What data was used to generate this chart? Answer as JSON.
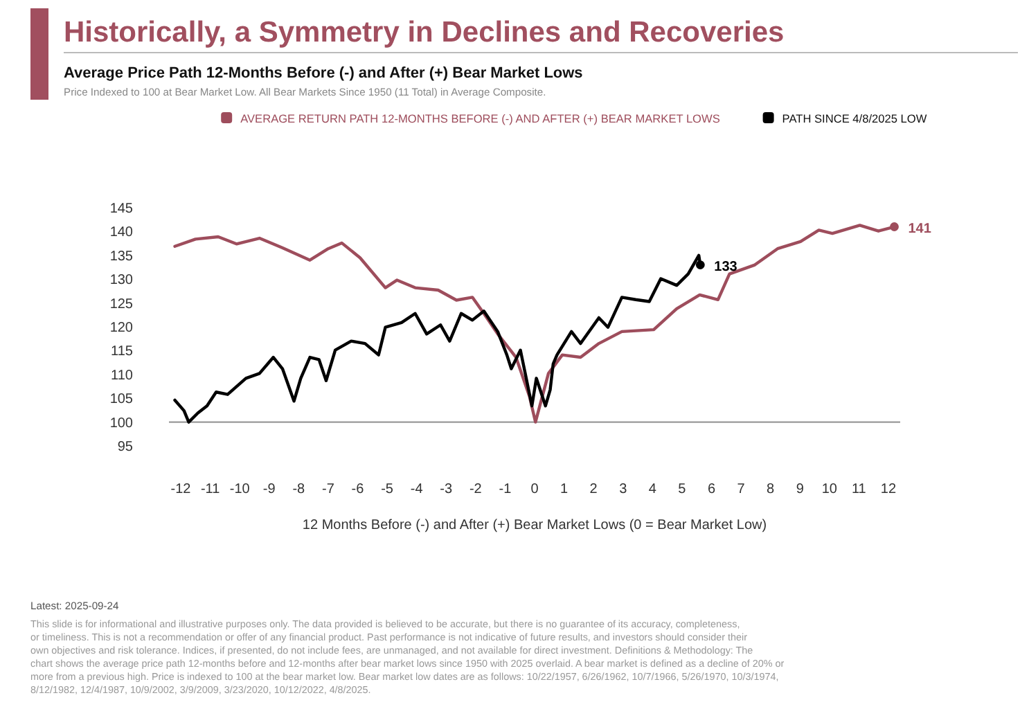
{
  "chart_data": {
    "type": "line",
    "title": "Historically, a Symmetry in Declines and Recoveries",
    "subtitle": "Average Price Path 12-Months Before (-) and After (+) Bear Market Lows",
    "xlabel": "12 Months Before (-) and After (+) Bear Market Lows (0 = Bear Market Low)",
    "annotations": [
      "Price Indexed to 100 at Bear Market Low. All Bear Markets Since 1950 (11 Total) in Average Composite.",
      "Latest: 2025-09-24",
      "This slide is for informational and illustrative purposes only. The data provided is believed to be accurate, but there is no guarantee of its accuracy, completeness, or timeliness. This is not a recommendation or offer of any financial product. Past performance is not indicative of future results, and investors should consider their own objectives and risk tolerance. Indices, if presented, do not include fees, are unmanaged, and not available for direct investment. Definitions & Methodology: The chart shows the average price path 12-months before and 12-months after bear market lows since 1950 with 2025 overlaid. A bear market is defined as a decline of 20% or more from a previous high. Price is indexed to 100 at the bear market low. Bear market low dates are as follows: 10/22/1957, 6/26/1962, 10/7/1966, 5/26/1970, 10/3/1974, 8/12/1982, 12/4/1987, 10/9/2002, 3/9/2009, 3/23/2020, 10/12/2022, 4/8/2025."
    ],
    "xlim": [
      -12.4,
      12.4
    ],
    "xticks": [
      -12,
      -11,
      -10,
      -9,
      -8,
      -7,
      -6,
      -5,
      -4,
      -3,
      -2,
      -1,
      0,
      1,
      2,
      3,
      4,
      5,
      6,
      7,
      8,
      9,
      10,
      11,
      12
    ],
    "ylim": [
      95,
      145
    ],
    "yticks": [
      95,
      100,
      105,
      110,
      115,
      120,
      125,
      130,
      135,
      140,
      145
    ],
    "grid": false,
    "legend": "top",
    "marker": "none",
    "line_style": "solid",
    "ref_lines": [
      {
        "axis": "y",
        "value": 100,
        "color": "#999999"
      }
    ],
    "series": [
      {
        "name": "AVERAGE RETURN PATH 12-MONTHS BEFORE (-) AND AFTER (+) BEAR MARKET LOWS",
        "color": "#9e4d5c",
        "x": [
          -12.2,
          -11.5,
          -10.73,
          -10.11,
          -9.33,
          -8.56,
          -7.62,
          -7.0,
          -6.54,
          -5.92,
          -5.06,
          -4.67,
          -4.05,
          -3.27,
          -2.65,
          -2.11,
          -1.72,
          -1.25,
          -0.63,
          -0.17,
          0.03,
          0.47,
          0.94,
          1.56,
          2.18,
          2.96,
          4.04,
          4.82,
          5.6,
          6.22,
          6.61,
          7.47,
          8.24,
          9.02,
          9.64,
          10.1,
          11.03,
          11.66,
          12.2
        ],
        "values": [
          136.9,
          138.4,
          138.9,
          137.4,
          138.6,
          136.6,
          134.0,
          136.4,
          137.6,
          134.5,
          128.2,
          129.8,
          128.2,
          127.7,
          125.6,
          126.2,
          122.8,
          118.5,
          113.6,
          105.3,
          100,
          110.2,
          114.1,
          113.6,
          116.5,
          119.0,
          119.4,
          123.8,
          126.7,
          125.7,
          131.1,
          133.0,
          136.4,
          137.9,
          140.3,
          139.6,
          141.3,
          140.1,
          141
        ],
        "value_labels": [
          null,
          null,
          null,
          null,
          null,
          null,
          null,
          null,
          null,
          null,
          null,
          null,
          null,
          null,
          null,
          null,
          null,
          null,
          null,
          null,
          null,
          null,
          null,
          null,
          null,
          null,
          null,
          null,
          null,
          null,
          null,
          null,
          null,
          null,
          null,
          null,
          null,
          null,
          "141"
        ]
      },
      {
        "name": "PATH SINCE 4/8/2025 LOW",
        "color": "#000000",
        "x": [
          -12.2,
          -11.89,
          -11.73,
          -11.42,
          -11.11,
          -10.8,
          -10.41,
          -9.79,
          -9.33,
          -8.86,
          -8.55,
          -8.16,
          -7.93,
          -7.62,
          -7.31,
          -7.07,
          -6.76,
          -6.22,
          -5.75,
          -5.29,
          -5.06,
          -4.51,
          -4.05,
          -3.66,
          -3.19,
          -2.88,
          -2.49,
          -2.11,
          -1.72,
          -1.25,
          -0.94,
          -0.79,
          -0.48,
          -0.09,
          0.06,
          0.37,
          0.53,
          0.63,
          0.76,
          1.25,
          1.56,
          2.18,
          2.49,
          2.96,
          3.43,
          3.89,
          4.28,
          4.82,
          5.21,
          5.57,
          5.62
        ],
        "values": [
          104.6,
          102.4,
          100,
          101.9,
          103.4,
          106.3,
          105.8,
          109.2,
          110.2,
          113.6,
          111.2,
          104.4,
          109.2,
          113.6,
          113.1,
          108.7,
          115.1,
          117.0,
          116.5,
          114.1,
          119.9,
          120.9,
          122.8,
          118.5,
          120.4,
          117.0,
          122.8,
          121.4,
          123.3,
          119.0,
          114.1,
          111.2,
          115.1,
          103.4,
          109.2,
          103.4,
          106.8,
          112.2,
          114.1,
          119.0,
          116.5,
          121.9,
          119.9,
          126.2,
          125.7,
          125.3,
          130.1,
          128.7,
          131.1,
          135.0,
          133
        ],
        "value_labels": [
          null,
          null,
          null,
          null,
          null,
          null,
          null,
          null,
          null,
          null,
          null,
          null,
          null,
          null,
          null,
          null,
          null,
          null,
          null,
          null,
          null,
          null,
          null,
          null,
          null,
          null,
          null,
          null,
          null,
          null,
          null,
          null,
          null,
          null,
          null,
          null,
          null,
          null,
          null,
          null,
          null,
          null,
          null,
          null,
          null,
          null,
          null,
          null,
          null,
          null,
          "133"
        ]
      }
    ]
  }
}
